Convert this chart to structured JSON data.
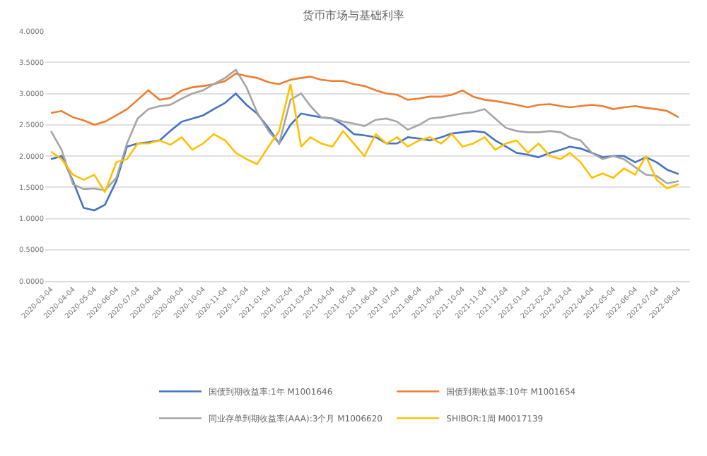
{
  "chart_data": {
    "type": "line",
    "title": "货币市场与基础利率",
    "x": [
      "2020-03-04",
      "2020-03-19",
      "2020-04-04",
      "2020-04-19",
      "2020-05-04",
      "2020-05-19",
      "2020-06-04",
      "2020-06-19",
      "2020-07-04",
      "2020-07-19",
      "2020-08-04",
      "2020-08-19",
      "2020-09-04",
      "2020-09-19",
      "2020-10-04",
      "2020-10-19",
      "2020-11-04",
      "2020-11-19",
      "2020-12-04",
      "2020-12-19",
      "2021-01-04",
      "2021-01-19",
      "2021-02-04",
      "2021-02-19",
      "2021-03-04",
      "2021-03-19",
      "2021-04-04",
      "2021-04-19",
      "2021-05-04",
      "2021-05-19",
      "2021-06-04",
      "2021-06-19",
      "2021-07-04",
      "2021-07-19",
      "2021-08-04",
      "2021-08-19",
      "2021-09-04",
      "2021-09-19",
      "2021-10-04",
      "2021-10-19",
      "2021-11-04",
      "2021-11-19",
      "2021-12-04",
      "2021-12-19",
      "2022-01-04",
      "2022-01-19",
      "2022-02-04",
      "2022-02-19",
      "2022-03-04",
      "2022-03-19",
      "2022-04-04",
      "2022-04-19",
      "2022-05-04",
      "2022-05-19",
      "2022-06-04",
      "2022-06-19",
      "2022-07-04",
      "2022-07-19",
      "2022-08-04"
    ],
    "series": [
      {
        "name": "国债到期收益率:1年 M1001646",
        "color": "#4472c4",
        "values": [
          1.95,
          2.0,
          1.6,
          1.17,
          1.13,
          1.22,
          1.6,
          2.15,
          2.2,
          2.22,
          2.25,
          2.4,
          2.55,
          2.6,
          2.65,
          2.75,
          2.85,
          3.0,
          2.82,
          2.68,
          2.45,
          2.2,
          2.5,
          2.68,
          2.65,
          2.62,
          2.6,
          2.5,
          2.35,
          2.33,
          2.3,
          2.2,
          2.2,
          2.3,
          2.28,
          2.25,
          2.3,
          2.36,
          2.38,
          2.4,
          2.38,
          2.25,
          2.15,
          2.05,
          2.02,
          1.98,
          2.05,
          2.1,
          2.15,
          2.12,
          2.05,
          1.98,
          2.0,
          2.0,
          1.9,
          1.98,
          1.9,
          1.78,
          1.71
        ]
      },
      {
        "name": "国债到期收益率:10年 M1001654",
        "color": "#ed7d31",
        "values": [
          2.69,
          2.72,
          2.62,
          2.57,
          2.5,
          2.55,
          2.65,
          2.75,
          2.9,
          3.05,
          2.9,
          2.93,
          3.05,
          3.1,
          3.12,
          3.15,
          3.2,
          3.32,
          3.28,
          3.25,
          3.18,
          3.15,
          3.22,
          3.25,
          3.27,
          3.22,
          3.2,
          3.2,
          3.15,
          3.12,
          3.05,
          3.0,
          2.98,
          2.9,
          2.92,
          2.95,
          2.95,
          2.98,
          3.05,
          2.95,
          2.9,
          2.88,
          2.85,
          2.82,
          2.78,
          2.82,
          2.83,
          2.8,
          2.78,
          2.8,
          2.82,
          2.8,
          2.75,
          2.78,
          2.8,
          2.77,
          2.75,
          2.72,
          2.62
        ]
      },
      {
        "name": "同业存单到期收益率(AAA):3个月 M1006620",
        "color": "#a5a5a5",
        "values": [
          2.4,
          2.1,
          1.55,
          1.47,
          1.48,
          1.45,
          1.65,
          2.2,
          2.6,
          2.75,
          2.8,
          2.82,
          2.92,
          3.0,
          3.05,
          3.15,
          3.25,
          3.38,
          3.1,
          2.7,
          2.4,
          2.2,
          2.9,
          3.0,
          2.8,
          2.62,
          2.6,
          2.55,
          2.52,
          2.48,
          2.58,
          2.6,
          2.55,
          2.42,
          2.5,
          2.6,
          2.62,
          2.65,
          2.68,
          2.7,
          2.75,
          2.6,
          2.45,
          2.4,
          2.38,
          2.38,
          2.4,
          2.38,
          2.3,
          2.25,
          2.05,
          1.95,
          2.0,
          1.95,
          1.82,
          1.7,
          1.68,
          1.56,
          1.6
        ]
      },
      {
        "name": "SHIBOR:1周 M0017139",
        "color": "#ffc000",
        "values": [
          2.07,
          1.95,
          1.7,
          1.62,
          1.7,
          1.42,
          1.9,
          1.95,
          2.2,
          2.2,
          2.25,
          2.18,
          2.3,
          2.1,
          2.2,
          2.35,
          2.25,
          2.05,
          1.95,
          1.87,
          2.15,
          2.4,
          3.15,
          2.15,
          2.3,
          2.2,
          2.15,
          2.4,
          2.2,
          2.0,
          2.35,
          2.2,
          2.3,
          2.15,
          2.25,
          2.3,
          2.2,
          2.35,
          2.15,
          2.2,
          2.3,
          2.1,
          2.2,
          2.25,
          2.05,
          2.2,
          2.0,
          1.95,
          2.05,
          1.9,
          1.65,
          1.72,
          1.65,
          1.8,
          1.7,
          2.0,
          1.62,
          1.48,
          1.55
        ]
      }
    ],
    "xlim": [
      "2020-02-25",
      "2022-08-20"
    ],
    "xticks": [
      {
        "value": "2020-03-04",
        "label": "2020-03-04"
      },
      {
        "value": "2020-04-04",
        "label": "2020-04-04"
      },
      {
        "value": "2020-05-04",
        "label": "2020-05-04"
      },
      {
        "value": "2020-06-04",
        "label": "2020-06-04"
      },
      {
        "value": "2020-07-04",
        "label": "2020-07-04"
      },
      {
        "value": "2020-08-04",
        "label": "2020-08-04"
      },
      {
        "value": "2020-09-04",
        "label": "2020-09-04"
      },
      {
        "value": "2020-10-04",
        "label": "2020-10-04"
      },
      {
        "value": "2020-11-04",
        "label": "2020-11-04"
      },
      {
        "value": "2020-12-04",
        "label": "2020-12-04"
      },
      {
        "value": "2021-01-04",
        "label": "2021-01-04"
      },
      {
        "value": "2021-02-04",
        "label": "2021-02-04"
      },
      {
        "value": "2021-03-04",
        "label": "2021-03-04"
      },
      {
        "value": "2021-04-04",
        "label": "2021-04-04"
      },
      {
        "value": "2021-05-04",
        "label": "2021-05-04"
      },
      {
        "value": "2021-06-04",
        "label": "2021-06-04"
      },
      {
        "value": "2021-07-04",
        "label": "2021-07-04"
      },
      {
        "value": "2021-08-04",
        "label": "2021-08-04"
      },
      {
        "value": "2021-09-04",
        "label": "2021-09-04"
      },
      {
        "value": "2021-10-04",
        "label": "2021-10-04"
      },
      {
        "value": "2021-11-04",
        "label": "2021-11-04"
      },
      {
        "value": "2021-12-04",
        "label": "2021-12-04"
      },
      {
        "value": "2022-01-04",
        "label": "2022-01-04"
      },
      {
        "value": "2022-02-04",
        "label": "2022-02-04"
      },
      {
        "value": "2022-03-04",
        "label": "2022-03-04"
      },
      {
        "value": "2022-04-04",
        "label": "2022-04-04"
      },
      {
        "value": "2022-05-04",
        "label": "2022-05-04"
      },
      {
        "value": "2022-06-04",
        "label": "2022-06-04"
      },
      {
        "value": "2022-07-04",
        "label": "2022-07-04"
      },
      {
        "value": "2022-08-04",
        "label": "2022-08-04"
      }
    ],
    "ylim": [
      0,
      4
    ],
    "yticks": [
      {
        "value": 0,
        "label": "0.0000"
      },
      {
        "value": 0.5,
        "label": "0.5000"
      },
      {
        "value": 1,
        "label": "1.0000"
      },
      {
        "value": 1.5,
        "label": "1.5000"
      },
      {
        "value": 2,
        "label": "2.0000"
      },
      {
        "value": 2.5,
        "label": "2.5000"
      },
      {
        "value": 3,
        "label": "3.0000"
      },
      {
        "value": 3.5,
        "label": "3.5000"
      },
      {
        "value": 4,
        "label": "4.0000"
      }
    ],
    "grid": "y",
    "legend": "bottom",
    "marker": "none",
    "line_style": "solid"
  }
}
